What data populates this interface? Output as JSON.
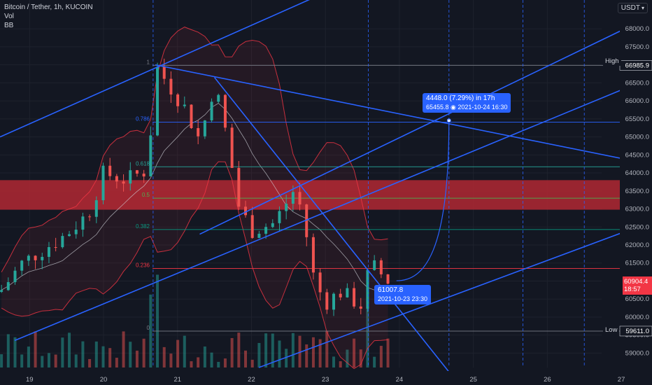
{
  "legend": {
    "title": "Bitcoin / Tether, 1h, KUCOIN",
    "vol": "Vol",
    "bb": "BB"
  },
  "currency_button": {
    "label": "USDT"
  },
  "high_tag": {
    "label": "High",
    "value": "66985.9"
  },
  "low_tag": {
    "label": "Low",
    "value": "59611.0"
  },
  "projection_box": {
    "line1": "4448.0 (7.29%) in 17h",
    "line2": "65455.8 ◉ 2021-10-24  16:30"
  },
  "point_box": {
    "line1": "61007.8",
    "line2": "2021-10-23 23:30"
  },
  "current_price": {
    "value": "60904.4",
    "countdown": "18:57"
  },
  "colors": {
    "background": "#131722",
    "up": "#26a69a",
    "down": "#ef5350",
    "trendline": "#2962ff",
    "bb_band": "#f23645",
    "zone": "#b22833"
  },
  "chart_data": {
    "type": "candlestick",
    "symbol": "Bitcoin / Tether",
    "interval": "1h",
    "exchange": "KUCOIN",
    "y_axis": {
      "side": "right",
      "range": [
        58600,
        68800
      ],
      "ticks": [
        59000.0,
        59500.0,
        60000.0,
        60500.0,
        61000.0,
        61500.0,
        62000.0,
        62500.0,
        63000.0,
        63500.0,
        64000.0,
        64500.0,
        65000.0,
        65500.0,
        66000.0,
        66500.0,
        67000.0,
        67500.0,
        68000.0
      ],
      "tick_labels": [
        "59000.0",
        "59500.0",
        "60000.0",
        "60500.0",
        "61000.0",
        "61500.0",
        "62000.0",
        "62500.0",
        "63000.0",
        "63500.0",
        "64000.0",
        "64500.0",
        "65000.0",
        "65500.0",
        "66000.0",
        "66500.0",
        "67000.0",
        "67500.0",
        "68000.0"
      ]
    },
    "x_axis": {
      "range": [
        18.6,
        27.35
      ],
      "ticks": [
        19,
        20,
        21,
        22,
        23,
        24,
        25,
        26,
        27
      ],
      "tick_labels": [
        "19",
        "20",
        "21",
        "22",
        "23",
        "24",
        "25",
        "26",
        "27"
      ]
    },
    "high": 66985.9,
    "low": 59611.0,
    "fibonacci": [
      {
        "label": "1",
        "price": 66985.9
      },
      {
        "label": "0.786",
        "price": 65410
      },
      {
        "label": "0.618",
        "price": 64170
      },
      {
        "label": "0.5",
        "price": 63300
      },
      {
        "label": "0.382",
        "price": 62430
      },
      {
        "label": "0.236",
        "price": 61350
      },
      {
        "label": "0",
        "price": 59611.0
      }
    ],
    "resistance_zone": [
      62980,
      63800
    ],
    "vertical_markers": [
      20.67,
      23.58,
      24.67,
      25.67,
      26.5
    ],
    "trendlines": [
      {
        "from": [
          18.6,
          65000
        ],
        "to": [
          23.1,
          69100
        ]
      },
      {
        "from": [
          20.7,
          67000
        ],
        "to": [
          27.35,
          64260
        ]
      },
      {
        "from": [
          21.5,
          66650
        ],
        "to": [
          24.7,
          58400
        ]
      },
      {
        "from": [
          18.8,
          59350
        ],
        "to": [
          27.35,
          66600
        ]
      },
      {
        "from": [
          21.3,
          62300
        ],
        "to": [
          27.35,
          68300
        ]
      },
      {
        "from": [
          22.1,
          58600
        ],
        "to": [
          27.35,
          62600
        ]
      }
    ],
    "projection": {
      "change": 4448.0,
      "percent": 7.29,
      "duration": "17h",
      "target": 65455.8,
      "target_time": "2021-10-24 16:30",
      "start": 61007.8,
      "start_time": "2021-10-23 23:30"
    },
    "current_price": 60904.4,
    "volume_series": {
      "relative": true
    }
  }
}
